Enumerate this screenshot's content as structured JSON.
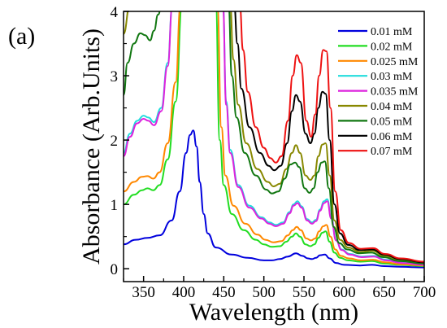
{
  "panel_label": "(a)",
  "chart_data": {
    "type": "line",
    "title": "",
    "xlabel": "Wavelength (nm)",
    "ylabel": "Absorbance (Arb.Units)",
    "xlim": [
      325,
      700
    ],
    "ylim": [
      -0.2,
      4
    ],
    "xticks": [
      350,
      400,
      450,
      500,
      550,
      600,
      650,
      700
    ],
    "yticks": [
      0,
      1,
      2,
      3,
      4
    ],
    "grid": false,
    "legend_position": "top-right",
    "series": [
      {
        "name": "0.01 mM",
        "color": "#0000dd",
        "x": [
          325,
          340,
          355,
          370,
          385,
          395,
          403,
          408,
          412,
          416,
          420,
          425,
          430,
          440,
          460,
          480,
          500,
          510,
          520,
          530,
          540,
          548,
          555,
          560,
          565,
          570,
          576,
          582,
          590,
          600,
          620,
          635,
          650,
          670,
          700
        ],
        "y": [
          0.38,
          0.45,
          0.48,
          0.52,
          0.75,
          1.2,
          1.8,
          2.08,
          2.15,
          1.9,
          1.35,
          0.85,
          0.55,
          0.33,
          0.22,
          0.17,
          0.13,
          0.13,
          0.15,
          0.19,
          0.24,
          0.2,
          0.16,
          0.15,
          0.17,
          0.21,
          0.22,
          0.16,
          0.09,
          0.06,
          0.05,
          0.06,
          0.04,
          0.03,
          0.02
        ]
      },
      {
        "name": "0.02 mM",
        "color": "#22dd22",
        "x": [
          325,
          338,
          348,
          355,
          362,
          370,
          380,
          390,
          398,
          440,
          445,
          450,
          460,
          475,
          490,
          500,
          510,
          520,
          528,
          535,
          540,
          545,
          552,
          558,
          563,
          568,
          573,
          577,
          582,
          588,
          595,
          605,
          620,
          635,
          650,
          670,
          700
        ],
        "y": [
          1.0,
          1.15,
          1.22,
          1.25,
          1.22,
          1.3,
          1.7,
          2.6,
          4.1,
          4.1,
          2.0,
          1.3,
          0.85,
          0.6,
          0.45,
          0.38,
          0.34,
          0.35,
          0.42,
          0.5,
          0.55,
          0.5,
          0.38,
          0.35,
          0.38,
          0.48,
          0.56,
          0.58,
          0.42,
          0.25,
          0.17,
          0.13,
          0.11,
          0.12,
          0.08,
          0.06,
          0.04
        ]
      },
      {
        "name": "0.025 mM",
        "color": "#ff8800",
        "x": [
          325,
          338,
          348,
          355,
          362,
          370,
          380,
          390,
          396,
          442,
          447,
          452,
          462,
          477,
          492,
          502,
          512,
          522,
          530,
          536,
          541,
          546,
          553,
          559,
          564,
          569,
          574,
          578,
          583,
          589,
          596,
          606,
          621,
          636,
          651,
          671,
          700
        ],
        "y": [
          1.2,
          1.35,
          1.43,
          1.44,
          1.4,
          1.5,
          1.95,
          2.9,
          4.1,
          4.1,
          2.2,
          1.45,
          0.98,
          0.7,
          0.53,
          0.45,
          0.41,
          0.43,
          0.52,
          0.6,
          0.65,
          0.6,
          0.47,
          0.44,
          0.47,
          0.58,
          0.66,
          0.68,
          0.5,
          0.3,
          0.2,
          0.16,
          0.13,
          0.14,
          0.1,
          0.07,
          0.05
        ]
      },
      {
        "name": "0.03 mM",
        "color": "#22dddd",
        "x": [
          325,
          333,
          342,
          350,
          356,
          363,
          372,
          380,
          386,
          449,
          453,
          458,
          468,
          482,
          497,
          507,
          515,
          524,
          532,
          537,
          542,
          547,
          554,
          560,
          565,
          570,
          575,
          579,
          584,
          590,
          597,
          607,
          622,
          637,
          652,
          672,
          700
        ],
        "y": [
          1.8,
          2.1,
          2.3,
          2.38,
          2.35,
          2.28,
          2.5,
          3.2,
          4.1,
          4.1,
          2.6,
          1.85,
          1.3,
          0.98,
          0.8,
          0.72,
          0.68,
          0.72,
          0.88,
          1.0,
          1.05,
          0.97,
          0.77,
          0.72,
          0.76,
          0.92,
          1.05,
          1.08,
          0.8,
          0.45,
          0.3,
          0.23,
          0.19,
          0.2,
          0.14,
          0.1,
          0.07
        ]
      },
      {
        "name": "0.035 mM",
        "color": "#dd22dd",
        "x": [
          325,
          333,
          342,
          350,
          356,
          363,
          372,
          380,
          386,
          449,
          453,
          458,
          468,
          482,
          497,
          507,
          515,
          524,
          532,
          537,
          542,
          547,
          554,
          560,
          565,
          570,
          575,
          579,
          584,
          590,
          597,
          607,
          622,
          637,
          652,
          672,
          700
        ],
        "y": [
          1.75,
          2.05,
          2.26,
          2.33,
          2.3,
          2.23,
          2.45,
          3.15,
          4.1,
          4.1,
          2.55,
          1.8,
          1.27,
          0.95,
          0.78,
          0.7,
          0.66,
          0.7,
          0.86,
          0.98,
          1.02,
          0.95,
          0.75,
          0.7,
          0.74,
          0.9,
          1.02,
          1.05,
          0.78,
          0.44,
          0.29,
          0.22,
          0.18,
          0.19,
          0.13,
          0.09,
          0.06
        ]
      },
      {
        "name": "0.04 mM",
        "color": "#888800",
        "x": [
          325,
          333,
          342,
          352,
          458,
          462,
          468,
          478,
          492,
          505,
          512,
          520,
          528,
          535,
          540,
          545,
          552,
          558,
          563,
          568,
          573,
          577,
          582,
          588,
          595,
          605,
          620,
          635,
          650,
          670,
          700
        ],
        "y": [
          3.65,
          4.1,
          4.1,
          4.1,
          4.1,
          3.25,
          2.55,
          1.95,
          1.55,
          1.35,
          1.28,
          1.32,
          1.55,
          1.8,
          1.92,
          1.8,
          1.45,
          1.38,
          1.45,
          1.75,
          1.93,
          1.95,
          1.45,
          0.75,
          0.45,
          0.33,
          0.26,
          0.28,
          0.2,
          0.14,
          0.09
        ]
      },
      {
        "name": "0.05 mM",
        "color": "#117711",
        "x": [
          325,
          330,
          338,
          346,
          352,
          358,
          363,
          368,
          373,
          380,
          456,
          460,
          466,
          476,
          490,
          503,
          510,
          518,
          526,
          533,
          539,
          544,
          551,
          557,
          562,
          567,
          572,
          576,
          581,
          587,
          594,
          604,
          619,
          634,
          649,
          669,
          700
        ],
        "y": [
          2.7,
          3.2,
          3.5,
          3.66,
          3.63,
          3.55,
          3.7,
          3.95,
          4.1,
          4.1,
          4.1,
          3.0,
          2.35,
          1.8,
          1.45,
          1.23,
          1.17,
          1.2,
          1.4,
          1.62,
          1.65,
          1.58,
          1.25,
          1.18,
          1.25,
          1.5,
          1.65,
          1.67,
          1.25,
          0.65,
          0.4,
          0.3,
          0.24,
          0.25,
          0.18,
          0.12,
          0.08
        ]
      },
      {
        "name": "0.06 mM",
        "color": "#000000",
        "x": [
          463,
          467,
          472,
          482,
          495,
          506,
          513,
          521,
          529,
          535,
          540,
          545,
          552,
          558,
          563,
          568,
          573,
          577,
          582,
          588,
          595,
          605,
          620,
          635,
          650,
          670,
          700
        ],
        "y": [
          4.1,
          3.5,
          2.8,
          2.2,
          1.8,
          1.6,
          1.53,
          1.6,
          1.95,
          2.45,
          2.7,
          2.6,
          2.1,
          1.95,
          2.1,
          2.5,
          2.75,
          2.72,
          2.0,
          1.0,
          0.55,
          0.37,
          0.29,
          0.3,
          0.22,
          0.15,
          0.1
        ]
      },
      {
        "name": "0.07 mM",
        "color": "#ee1111",
        "x": [
          470,
          474,
          480,
          490,
          500,
          508,
          515,
          522,
          530,
          536,
          541,
          546,
          553,
          559,
          564,
          569,
          574,
          578,
          583,
          589,
          596,
          606,
          621,
          636,
          651,
          671,
          700
        ],
        "y": [
          4.1,
          3.4,
          2.75,
          2.2,
          1.88,
          1.72,
          1.65,
          1.75,
          2.3,
          3.0,
          3.32,
          3.2,
          2.3,
          2.05,
          2.4,
          3.0,
          3.4,
          3.38,
          2.5,
          1.2,
          0.6,
          0.4,
          0.31,
          0.32,
          0.23,
          0.16,
          0.11
        ]
      }
    ]
  }
}
